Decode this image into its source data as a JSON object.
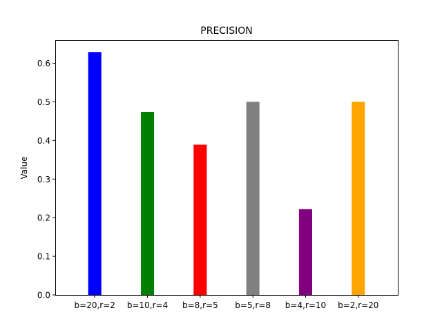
{
  "chart_data": {
    "type": "bar",
    "title": "PRECISION",
    "xlabel": "",
    "ylabel": "Value",
    "categories": [
      "b=20,r=2",
      "b=10,r=4",
      "b=8,r=5",
      "b=5,r=8",
      "b=4,r=10",
      "b=2,r=20"
    ],
    "values": [
      0.629,
      0.474,
      0.389,
      0.5,
      0.222,
      0.5
    ],
    "colors": [
      "#0000ff",
      "#008000",
      "#ff0000",
      "#808080",
      "#800080",
      "#ffa500"
    ],
    "ylim": [
      0,
      0.66
    ],
    "yticks": [
      "0.0",
      "0.1",
      "0.2",
      "0.3",
      "0.4",
      "0.5",
      "0.6"
    ],
    "grid": false,
    "legend": "none"
  }
}
